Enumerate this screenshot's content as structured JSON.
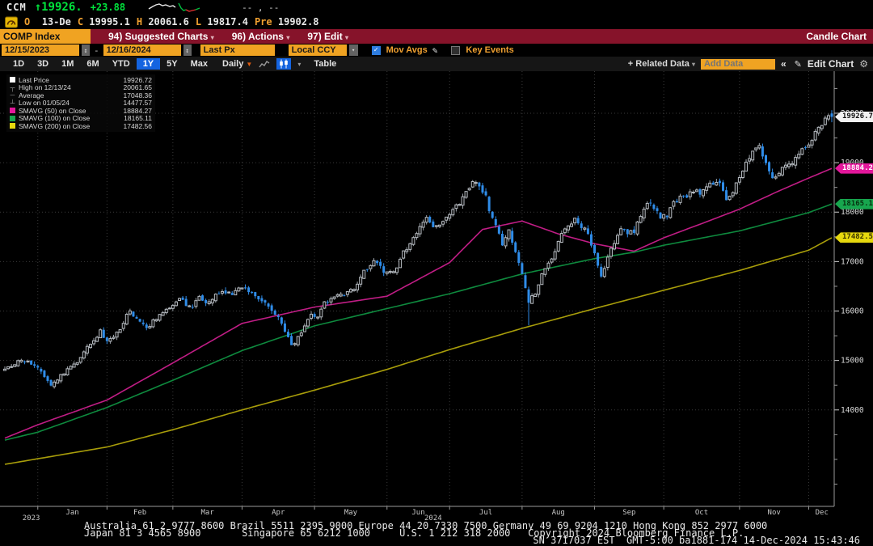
{
  "ticker_row": {
    "symbol": "CCM",
    "direction": "↑",
    "last": "19926.",
    "change": "+23.88",
    "bid_ask": "-- , --"
  },
  "ohlc_row": {
    "fields": [
      {
        "label": "O",
        "value": "13-De"
      },
      {
        "label": "C",
        "value": "19995.1"
      },
      {
        "label": "H",
        "value": "20061.6"
      },
      {
        "label": "L",
        "value": "19817.4"
      },
      {
        "label": "Pre",
        "value": "19902.8"
      }
    ]
  },
  "menu_bar": {
    "security": "COMP Index",
    "items": [
      {
        "label": "94) Suggested Charts"
      },
      {
        "label": "96) Actions"
      },
      {
        "label": "97) Edit"
      }
    ],
    "right_title": "Candle Chart"
  },
  "controls": {
    "date_from": "12/15/2023",
    "date_sep": "-",
    "date_to": "12/16/2024",
    "field": "Last Px",
    "currency": "Local CCY",
    "mov_avgs_label": "Mov Avgs",
    "key_events_label": "Key Events"
  },
  "period_bar": {
    "periods": [
      "1D",
      "3D",
      "1M",
      "6M",
      "YTD",
      "1Y",
      "5Y",
      "Max"
    ],
    "active": "1Y",
    "frequency": "Daily",
    "table_label": "Table"
  },
  "right_tools": {
    "related_data": "Related Data",
    "add_data": "Add Data",
    "collapse": "«",
    "edit_chart": "Edit Chart"
  },
  "legend": {
    "rows": [
      {
        "label": "Last Price",
        "value": "19926.72"
      },
      {
        "label": "High on 12/13/24",
        "value": "20061.65"
      },
      {
        "label": "Average",
        "value": "17048.36"
      },
      {
        "label": "Low on 01/05/24",
        "value": "14477.57"
      },
      {
        "label": "SMAVG (50)  on Close",
        "value": "18884.27"
      },
      {
        "label": "SMAVG (100) on Close",
        "value": "18165.11"
      },
      {
        "label": "SMAVG (200) on Close",
        "value": "17482.56"
      }
    ]
  },
  "footer": {
    "line1": "Australia 61 2 9777 8600 Brazil 5511 2395 9000 Europe 44 20 7330 7500 Germany 49 69 9204 1210 Hong Kong 852 2977 6000",
    "line2": "Japan 81 3 4565 8900       Singapore 65 6212 1000     U.S. 1 212 318 2000   Copyright 2024 Bloomberg Finance L.P.",
    "line3": "SN 3717037 EST  GMT-5:00 ba1881-174 14-Dec-2024 15:43:46"
  },
  "chart_data": {
    "type": "candlestick",
    "security": "COMP Index",
    "title": "Candle Chart",
    "period": "12/15/2023 - 12/16/2024",
    "frequency": "Daily",
    "last_price": 19926.72,
    "high": {
      "date": "12/13/24",
      "value": 20061.65
    },
    "average": 17048.36,
    "low": {
      "date": "01/05/24",
      "value": 14477.57
    },
    "ylim": [
      12050,
      20850
    ],
    "yticks": [
      14000,
      15000,
      16000,
      17000,
      18000,
      19000,
      20000
    ],
    "grid": true,
    "total_days": 252,
    "months": [
      {
        "label": "Jan",
        "start": 10
      },
      {
        "label": "Feb",
        "start": 31
      },
      {
        "label": "Mar",
        "start": 51
      },
      {
        "label": "Apr",
        "start": 72
      },
      {
        "label": "May",
        "start": 94
      },
      {
        "label": "Jun",
        "start": 116
      },
      {
        "label": "Jul",
        "start": 135
      },
      {
        "label": "Aug",
        "start": 157
      },
      {
        "label": "Sep",
        "start": 179
      },
      {
        "label": "Oct",
        "start": 200
      },
      {
        "label": "Nov",
        "start": 223
      },
      {
        "label": "Dec",
        "start": 244
      }
    ],
    "years": [
      {
        "label": "2023",
        "center_day": 8
      },
      {
        "label": "2024",
        "center_day": 130
      }
    ],
    "candles": {
      "up_color": "#b7bcc2",
      "down_color": "#2f8ce8",
      "close_anchors": [
        [
          0,
          14814
        ],
        [
          2,
          14890
        ],
        [
          4,
          14966
        ],
        [
          6,
          15003
        ],
        [
          8,
          14920
        ],
        [
          10,
          14850
        ],
        [
          12,
          14700
        ],
        [
          14,
          14524
        ],
        [
          16,
          14610
        ],
        [
          18,
          14760
        ],
        [
          20,
          14857
        ],
        [
          22,
          14944
        ],
        [
          24,
          15160
        ],
        [
          26,
          15360
        ],
        [
          28,
          15455
        ],
        [
          29,
          15628
        ],
        [
          31,
          15361
        ],
        [
          33,
          15509
        ],
        [
          35,
          15609
        ],
        [
          37,
          15940
        ],
        [
          38,
          15990
        ],
        [
          40,
          15830
        ],
        [
          42,
          15700
        ],
        [
          43,
          15630
        ],
        [
          45,
          15790
        ],
        [
          47,
          15940
        ],
        [
          49,
          16035
        ],
        [
          51,
          16091
        ],
        [
          53,
          16274
        ],
        [
          55,
          16130
        ],
        [
          57,
          16087
        ],
        [
          59,
          16265
        ],
        [
          61,
          16128
        ],
        [
          63,
          16240
        ],
        [
          65,
          16369
        ],
        [
          67,
          16384
        ],
        [
          69,
          16301
        ],
        [
          71,
          16460
        ],
        [
          73,
          16430
        ],
        [
          75,
          16396
        ],
        [
          77,
          16240
        ],
        [
          79,
          16170
        ],
        [
          81,
          15990
        ],
        [
          83,
          15880
        ],
        [
          85,
          15601
        ],
        [
          87,
          15282
        ],
        [
          89,
          15451
        ],
        [
          91,
          15712
        ],
        [
          93,
          15928
        ],
        [
          95,
          15840
        ],
        [
          97,
          16156
        ],
        [
          99,
          16260
        ],
        [
          101,
          16332
        ],
        [
          103,
          16340
        ],
        [
          105,
          16420
        ],
        [
          107,
          16511
        ],
        [
          109,
          16794
        ],
        [
          111,
          16920
        ],
        [
          112,
          17019
        ],
        [
          114,
          16920
        ],
        [
          115,
          16737
        ],
        [
          117,
          16791
        ],
        [
          119,
          16857
        ],
        [
          121,
          17187
        ],
        [
          123,
          17343
        ],
        [
          125,
          17557
        ],
        [
          126,
          17688
        ],
        [
          128,
          17857
        ],
        [
          130,
          17717
        ],
        [
          132,
          17732
        ],
        [
          134,
          17879
        ],
        [
          136,
          18028
        ],
        [
          138,
          18188
        ],
        [
          140,
          18403
        ],
        [
          142,
          18647
        ],
        [
          144,
          18509
        ],
        [
          146,
          18352
        ],
        [
          147,
          17996
        ],
        [
          149,
          17725
        ],
        [
          151,
          17342
        ],
        [
          152,
          17463
        ],
        [
          153,
          17599
        ],
        [
          155,
          17194
        ],
        [
          157,
          16776
        ],
        [
          159,
          16200
        ],
        [
          161,
          16366
        ],
        [
          163,
          16745
        ],
        [
          165,
          17000
        ],
        [
          167,
          17187
        ],
        [
          169,
          17594
        ],
        [
          171,
          17713
        ],
        [
          173,
          17877
        ],
        [
          175,
          17713
        ],
        [
          177,
          17556
        ],
        [
          179,
          17136
        ],
        [
          181,
          16690
        ],
        [
          183,
          17084
        ],
        [
          185,
          17395
        ],
        [
          187,
          17684
        ],
        [
          189,
          17592
        ],
        [
          191,
          17573
        ],
        [
          193,
          17948
        ],
        [
          195,
          18190
        ],
        [
          197,
          18083
        ],
        [
          199,
          17910
        ],
        [
          201,
          17918
        ],
        [
          203,
          18182
        ],
        [
          205,
          18291
        ],
        [
          207,
          18315
        ],
        [
          209,
          18439
        ],
        [
          211,
          18373
        ],
        [
          213,
          18518
        ],
        [
          215,
          18573
        ],
        [
          217,
          18607
        ],
        [
          219,
          18240
        ],
        [
          221,
          18439
        ],
        [
          223,
          18712
        ],
        [
          225,
          18983
        ],
        [
          227,
          19269
        ],
        [
          229,
          19299
        ],
        [
          231,
          18966
        ],
        [
          233,
          18680
        ],
        [
          235,
          18826
        ],
        [
          237,
          18923
        ],
        [
          239,
          19003
        ],
        [
          241,
          19218
        ],
        [
          243,
          19298
        ],
        [
          245,
          19480
        ],
        [
          247,
          19700
        ],
        [
          249,
          19860
        ],
        [
          250,
          19902
        ],
        [
          251,
          19926.72
        ]
      ],
      "overrides": [
        {
          "day": 14,
          "low": 14477.57
        },
        {
          "day": 159,
          "low": 15710
        },
        {
          "day": 251,
          "open": 19995.1,
          "high": 20061.65,
          "low": 19817.4,
          "close": 19926.72
        }
      ]
    },
    "smavg": [
      {
        "name": "SMAVG (50) on Close",
        "period": 50,
        "color": "#c01d85",
        "value": 18884.27,
        "anchors": [
          [
            0,
            13430
          ],
          [
            10,
            13700
          ],
          [
            31,
            14200
          ],
          [
            51,
            14950
          ],
          [
            72,
            15750
          ],
          [
            94,
            16080
          ],
          [
            116,
            16300
          ],
          [
            135,
            16980
          ],
          [
            145,
            17650
          ],
          [
            157,
            17820
          ],
          [
            168,
            17560
          ],
          [
            179,
            17360
          ],
          [
            191,
            17210
          ],
          [
            200,
            17480
          ],
          [
            212,
            17780
          ],
          [
            223,
            18060
          ],
          [
            234,
            18400
          ],
          [
            244,
            18690
          ],
          [
            251,
            18884.27
          ]
        ]
      },
      {
        "name": "SMAVG (100) on Close",
        "period": 100,
        "color": "#0e8a3e",
        "value": 18165.11,
        "anchors": [
          [
            0,
            13390
          ],
          [
            10,
            13550
          ],
          [
            31,
            14050
          ],
          [
            51,
            14600
          ],
          [
            72,
            15200
          ],
          [
            94,
            15700
          ],
          [
            116,
            16050
          ],
          [
            135,
            16350
          ],
          [
            157,
            16750
          ],
          [
            179,
            17060
          ],
          [
            191,
            17190
          ],
          [
            200,
            17330
          ],
          [
            223,
            17620
          ],
          [
            244,
            17990
          ],
          [
            251,
            18165.11
          ]
        ]
      },
      {
        "name": "SMAVG (200) on Close",
        "period": 200,
        "color": "#a89d0a",
        "value": 17482.56,
        "anchors": [
          [
            0,
            12900
          ],
          [
            31,
            13250
          ],
          [
            51,
            13600
          ],
          [
            72,
            14000
          ],
          [
            94,
            14400
          ],
          [
            116,
            14820
          ],
          [
            135,
            15220
          ],
          [
            157,
            15650
          ],
          [
            179,
            16050
          ],
          [
            200,
            16420
          ],
          [
            223,
            16820
          ],
          [
            244,
            17230
          ],
          [
            251,
            17482.56
          ]
        ]
      }
    ],
    "axis_badges": [
      {
        "value": 19926.72,
        "label": "19926.72",
        "bg": "#f2f2f2",
        "fg": "#111111"
      },
      {
        "value": 18884.27,
        "label": "18884.27",
        "bg": "#e3179b",
        "fg": "#ffffff"
      },
      {
        "value": 18165.11,
        "label": "18165.11",
        "bg": "#17a64e",
        "fg": "#06300f"
      },
      {
        "value": 17482.56,
        "label": "17482.56",
        "bg": "#e6d80e",
        "fg": "#3b3600"
      }
    ]
  },
  "colors": {
    "amber": "#f0a322",
    "menu_red": "#86132a",
    "up_green": "#00e33c",
    "candle_blue": "#2f8ce8",
    "active_blue": "#1464e0"
  }
}
